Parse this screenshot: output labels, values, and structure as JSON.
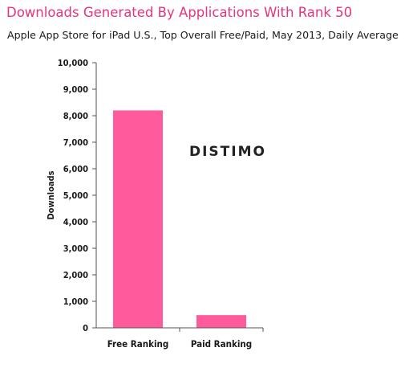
{
  "title": "Downloads Generated By Applications With Rank 50",
  "subtitle": "Apple App Store for iPad U.S., Top Overall Free/Paid, May 2013, Daily Average",
  "watermark": "DISTIMO",
  "colors": {
    "title": "#e6357d",
    "bar": "#ff5a9b",
    "axis": "#555555"
  },
  "chart_data": {
    "type": "bar",
    "categories": [
      "Free Ranking",
      "Paid Ranking"
    ],
    "values": [
      8200,
      480
    ],
    "ylabel": "Downloads",
    "xlabel": "",
    "ylim": [
      0,
      10000
    ],
    "yticks": [
      0,
      1000,
      2000,
      3000,
      4000,
      5000,
      6000,
      7000,
      8000,
      9000,
      10000
    ],
    "ytick_labels": [
      "0",
      "1,000",
      "2,000",
      "3,000",
      "4,000",
      "5,000",
      "6,000",
      "7,000",
      "8,000",
      "9,000",
      "10,000"
    ],
    "grid": false,
    "legend": "none"
  }
}
